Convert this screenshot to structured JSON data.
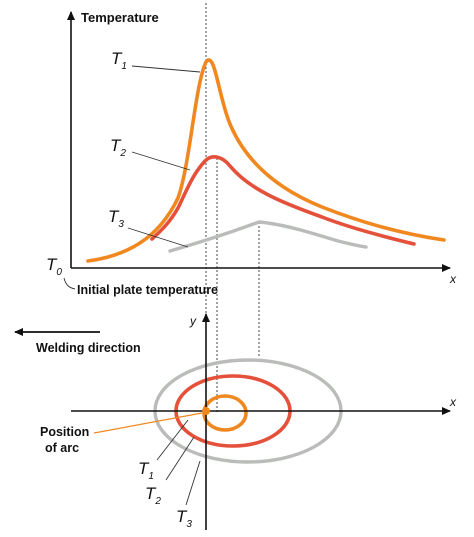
{
  "top_chart": {
    "y_axis_label": "Temperature",
    "x_axis_label": "x",
    "baseline_label_main": "T",
    "baseline_label_sub": "0",
    "baseline_caption": "Initial plate temperature",
    "curves": [
      {
        "main": "T",
        "sub": "1",
        "color": "#f0881f"
      },
      {
        "main": "T",
        "sub": "2",
        "color": "#e5503a"
      },
      {
        "main": "T",
        "sub": "3",
        "color": "#b9bcb9"
      }
    ]
  },
  "bottom_diagram": {
    "y_axis_label": "y",
    "x_axis_label": "x",
    "welding_direction_label": "Welding direction",
    "arc_label_line1": "Position",
    "arc_label_line2": "of arc",
    "isotherms": [
      {
        "main": "T",
        "sub": "1",
        "color": "#f0881f"
      },
      {
        "main": "T",
        "sub": "2",
        "color": "#e5503a"
      },
      {
        "main": "T",
        "sub": "3",
        "color": "#b9bcb9"
      }
    ],
    "arc_color": "#f0881f"
  }
}
